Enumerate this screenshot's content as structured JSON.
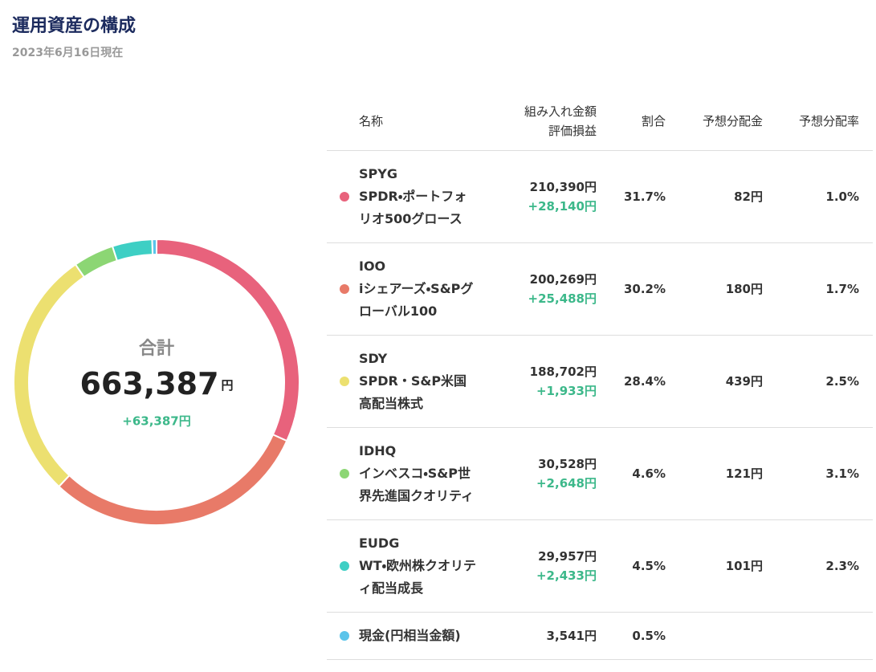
{
  "header": {
    "title": "運用資産の構成",
    "date": "2023年6月16日現在"
  },
  "chart_data": {
    "type": "donut",
    "center_label": "合計",
    "total": "663,387",
    "total_unit": "円",
    "total_gain": "+63,387円",
    "categories": [
      "SPDR・ポートフォリオ500グロース",
      "iシェアーズ・S&Pグローバル100",
      "SPDR・S&P米国高配当株式",
      "インベスコ・S&P世界先進国クオリティ",
      "WT・欧州株クオリティ配当成長",
      "現金(円相当金額)"
    ],
    "values": [
      31.7,
      30.2,
      28.4,
      4.6,
      4.5,
      0.5
    ],
    "value_labels": [
      "31.7%",
      "30.2%",
      "28.4%",
      "4.6%",
      "4.5%",
      "0.5%"
    ],
    "colors": [
      "#e8627c",
      "#e87a68",
      "#ece070",
      "#8cd674",
      "#3ecfc4",
      "#5bc4ea"
    ]
  },
  "table": {
    "columns": [
      "名称",
      "組み入れ金額",
      "評価損益",
      "割合",
      "予想分配金",
      "予想分配率"
    ],
    "rows": [
      {
        "ticker": "SPYG",
        "amount": "210,390円",
        "gain": "+28,140円",
        "dividend": "82円",
        "yield": "1.0%"
      },
      {
        "ticker": "IOO",
        "amount": "200,269円",
        "gain": "+25,488円",
        "dividend": "180円",
        "yield": "1.7%"
      },
      {
        "ticker": "SDY",
        "amount": "188,702円",
        "gain": "+1,933円",
        "dividend": "439円",
        "yield": "2.5%"
      },
      {
        "ticker": "IDHQ",
        "amount": "30,528円",
        "gain": "+2,648円",
        "dividend": "121円",
        "yield": "3.1%"
      },
      {
        "ticker": "EUDG",
        "amount": "29,957円",
        "gain": "+2,433円",
        "dividend": "101円",
        "yield": "2.3%"
      },
      {
        "amount": "3,541円"
      }
    ]
  }
}
